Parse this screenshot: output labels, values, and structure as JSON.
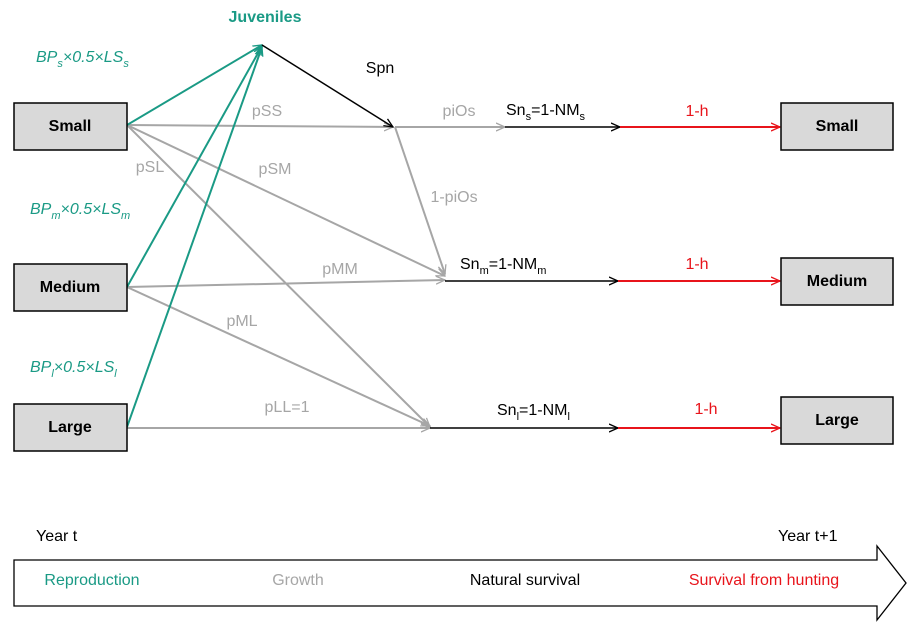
{
  "juveniles": "Juveniles",
  "spn": "Spn",
  "left_boxes": [
    "Small",
    "Medium",
    "Large"
  ],
  "right_boxes": [
    "Small",
    "Medium",
    "Large"
  ],
  "reproduction_labels": [
    [
      "BP",
      "s",
      "×0.5×LS",
      "s"
    ],
    [
      "BP",
      "m",
      "×0.5×LS",
      "m"
    ],
    [
      "BP",
      "l",
      "×0.5×LS",
      "l"
    ]
  ],
  "growth_labels": [
    "pSS",
    "pSM",
    "pSL",
    "pMM",
    "pML",
    "pLL=1",
    "piOs",
    "1-piOs"
  ],
  "survival_labels": [
    [
      "Sn",
      "s",
      "=1-NM",
      "s"
    ],
    [
      "Sn",
      "m",
      "=1-NM",
      "m"
    ],
    [
      "Sn",
      "l",
      "=1-NM",
      "l"
    ]
  ],
  "hunting_labels": [
    "1-h",
    "1-h",
    "1-h"
  ],
  "timeline": {
    "start": "Year t",
    "end": "Year t+1",
    "stages": [
      "Reproduction",
      "Growth",
      "Natural survival",
      "Survival from hunting"
    ]
  }
}
